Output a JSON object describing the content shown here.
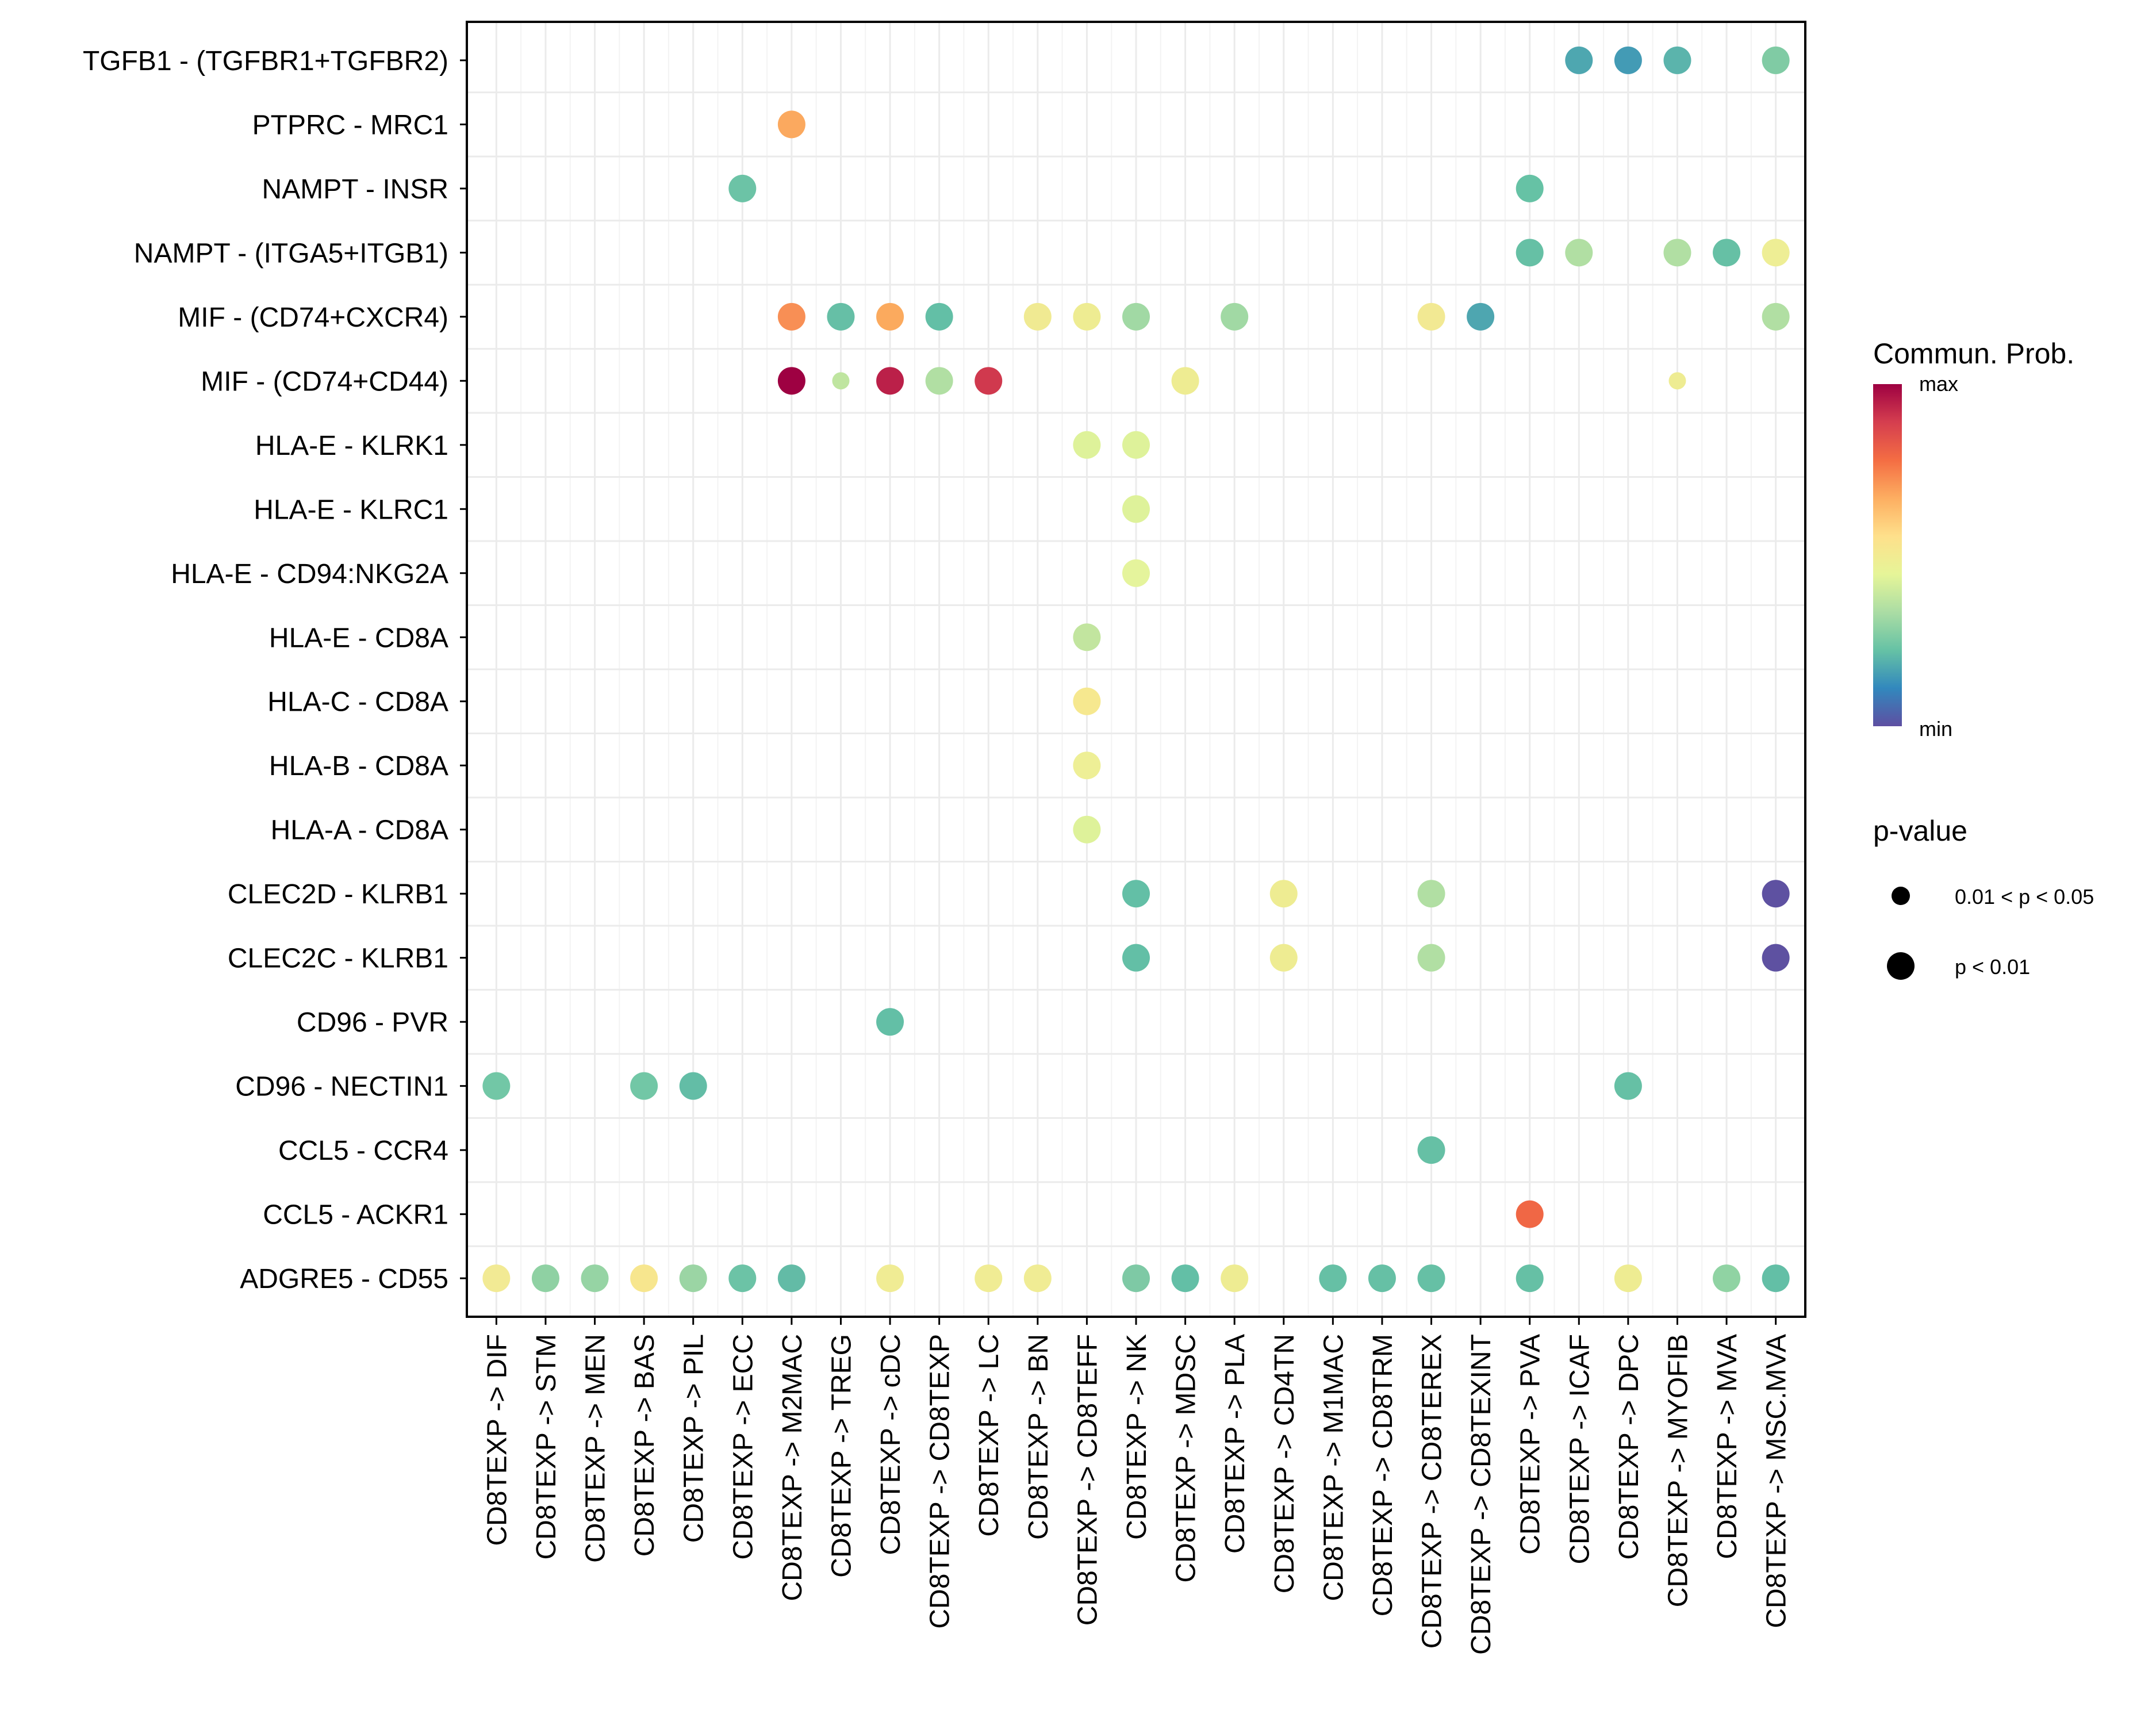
{
  "chart_data": {
    "type": "scatter",
    "subtype": "dot-plot (cell-cell communication bubble plot)",
    "title": "",
    "xlabel": "",
    "ylabel": "",
    "grid": true,
    "x_categories": [
      "CD8TEXP -> DIF",
      "CD8TEXP -> STM",
      "CD8TEXP -> MEN",
      "CD8TEXP -> BAS",
      "CD8TEXP -> PIL",
      "CD8TEXP -> ECC",
      "CD8TEXP -> M2MAC",
      "CD8TEXP -> TREG",
      "CD8TEXP -> cDC",
      "CD8TEXP -> CD8TEXP",
      "CD8TEXP -> LC",
      "CD8TEXP -> BN",
      "CD8TEXP -> CD8TEFF",
      "CD8TEXP -> NK",
      "CD8TEXP -> MDSC",
      "CD8TEXP -> PLA",
      "CD8TEXP -> CD4TN",
      "CD8TEXP -> M1MAC",
      "CD8TEXP -> CD8TRM",
      "CD8TEXP -> CD8TEREX",
      "CD8TEXP -> CD8TEXINT",
      "CD8TEXP -> PVA",
      "CD8TEXP -> ICAF",
      "CD8TEXP -> DPC",
      "CD8TEXP -> MYOFIB",
      "CD8TEXP -> MVA",
      "CD8TEXP -> MSC.MVA"
    ],
    "y_categories": [
      "TGFB1 - (TGFBR1+TGFBR2)",
      "PTPRC - MRC1",
      "NAMPT - INSR",
      "NAMPT - (ITGA5+ITGB1)",
      "MIF - (CD74+CXCR4)",
      "MIF - (CD74+CD44)",
      "HLA-E - KLRK1",
      "HLA-E - KLRC1",
      "HLA-E - CD94:NKG2A",
      "HLA-E - CD8A",
      "HLA-C - CD8A",
      "HLA-B - CD8A",
      "HLA-A - CD8A",
      "CLEC2D - KLRB1",
      "CLEC2C - KLRB1",
      "CD96 - PVR",
      "CD96 - NECTIN1",
      "CCL5 - CCR4",
      "CCL5 - ACKR1",
      "ADGRE5 - CD55"
    ],
    "value_scale": {
      "name": "Commun. Prob.",
      "min_label": "min",
      "max_label": "max",
      "palette": "Spectral (reversed)"
    },
    "points_note": "each point: [y_index, x_index, color_hex, pvalue_class] where pvalue_class 1 = '0.01 < p < 0.05', 2 = 'p < 0.01'",
    "points": [
      [
        0,
        22,
        "#4ea7b0",
        2
      ],
      [
        0,
        23,
        "#439bb5",
        2
      ],
      [
        0,
        24,
        "#5bb4ac",
        2
      ],
      [
        0,
        26,
        "#80cba4",
        2
      ],
      [
        1,
        6,
        "#fba95f",
        2
      ],
      [
        2,
        5,
        "#6cc3a6",
        2
      ],
      [
        2,
        21,
        "#66c2a5",
        2
      ],
      [
        3,
        21,
        "#66c0a5",
        2
      ],
      [
        3,
        22,
        "#b1dfa3",
        2
      ],
      [
        3,
        24,
        "#b1dfa3",
        2
      ],
      [
        3,
        25,
        "#66c0a5",
        2
      ],
      [
        3,
        26,
        "#eeee95",
        2
      ],
      [
        4,
        6,
        "#f88f55",
        2
      ],
      [
        4,
        7,
        "#66bfa6",
        2
      ],
      [
        4,
        8,
        "#fbaa5e",
        2
      ],
      [
        4,
        9,
        "#63bfa6",
        2
      ],
      [
        4,
        11,
        "#f0ea92",
        2
      ],
      [
        4,
        12,
        "#eeec92",
        2
      ],
      [
        4,
        13,
        "#a1d9a4",
        2
      ],
      [
        4,
        15,
        "#a1d9a4",
        2
      ],
      [
        4,
        19,
        "#f2e993",
        2
      ],
      [
        4,
        20,
        "#4ea6b0",
        2
      ],
      [
        4,
        26,
        "#b1dfa3",
        2
      ],
      [
        5,
        6,
        "#9e0142",
        2
      ],
      [
        5,
        7,
        "#bfe5a0",
        1
      ],
      [
        5,
        8,
        "#bb2049",
        2
      ],
      [
        5,
        9,
        "#b1dfa3",
        2
      ],
      [
        5,
        10,
        "#d0394e",
        2
      ],
      [
        5,
        14,
        "#eeec92",
        2
      ],
      [
        5,
        24,
        "#eeec92",
        1
      ],
      [
        6,
        12,
        "#def29a",
        2
      ],
      [
        6,
        13,
        "#def29a",
        2
      ],
      [
        7,
        13,
        "#def29a",
        2
      ],
      [
        8,
        13,
        "#e5f49c",
        2
      ],
      [
        9,
        12,
        "#c2e59f",
        2
      ],
      [
        10,
        12,
        "#f6e88f",
        2
      ],
      [
        11,
        12,
        "#eeef96",
        2
      ],
      [
        12,
        12,
        "#def29a",
        2
      ],
      [
        13,
        13,
        "#63bfa6",
        2
      ],
      [
        13,
        16,
        "#eeec92",
        2
      ],
      [
        13,
        19,
        "#b1dfa3",
        2
      ],
      [
        13,
        26,
        "#5e51a1",
        2
      ],
      [
        14,
        13,
        "#63bfa6",
        2
      ],
      [
        14,
        16,
        "#eeec92",
        2
      ],
      [
        14,
        19,
        "#b1dfa3",
        2
      ],
      [
        14,
        26,
        "#5e51a1",
        2
      ],
      [
        15,
        8,
        "#63bfa6",
        2
      ],
      [
        16,
        0,
        "#72c7a6",
        2
      ],
      [
        16,
        3,
        "#72c7a6",
        2
      ],
      [
        16,
        4,
        "#63bda6",
        2
      ],
      [
        16,
        23,
        "#66c0a5",
        2
      ],
      [
        17,
        19,
        "#66c0a5",
        2
      ],
      [
        18,
        21,
        "#f06745",
        2
      ],
      [
        19,
        0,
        "#f2ea94",
        2
      ],
      [
        19,
        1,
        "#8fd1a3",
        2
      ],
      [
        19,
        2,
        "#96d4a4",
        2
      ],
      [
        19,
        3,
        "#f7e68e",
        2
      ],
      [
        19,
        4,
        "#9bd5a4",
        2
      ],
      [
        19,
        5,
        "#6cc3a6",
        2
      ],
      [
        19,
        6,
        "#63bba6",
        2
      ],
      [
        19,
        8,
        "#f0ec94",
        2
      ],
      [
        19,
        10,
        "#f0ec94",
        2
      ],
      [
        19,
        11,
        "#f0ec94",
        2
      ],
      [
        19,
        13,
        "#7ec9a5",
        2
      ],
      [
        19,
        14,
        "#63bfa6",
        2
      ],
      [
        19,
        15,
        "#eeec92",
        2
      ],
      [
        19,
        17,
        "#66c0a5",
        2
      ],
      [
        19,
        18,
        "#66c0a5",
        2
      ],
      [
        19,
        19,
        "#66c0a5",
        2
      ],
      [
        19,
        21,
        "#66c0a5",
        2
      ],
      [
        19,
        23,
        "#eeec92",
        2
      ],
      [
        19,
        25,
        "#90d3a3",
        2
      ],
      [
        19,
        26,
        "#63bfa6",
        2
      ]
    ],
    "legends": {
      "color": {
        "title": "Commun. Prob.",
        "max": "max",
        "min": "min",
        "stops": [
          "#9e0142",
          "#d53e4f",
          "#f46d43",
          "#fdae61",
          "#fee08b",
          "#e6f598",
          "#abdda4",
          "#66c2a5",
          "#3288bd",
          "#5e4fa2"
        ]
      },
      "size": {
        "title": "p-value",
        "items": [
          {
            "label": "0.01 < p < 0.05",
            "class": 1
          },
          {
            "label": "p < 0.01",
            "class": 2
          }
        ]
      }
    }
  }
}
